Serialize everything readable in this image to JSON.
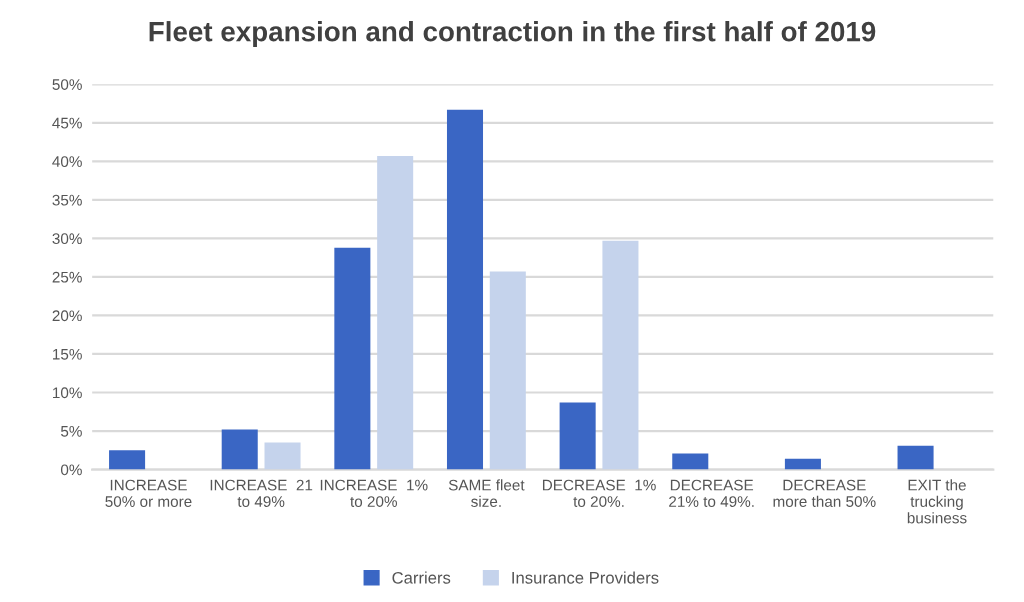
{
  "chart_data": {
    "type": "bar",
    "title": "Fleet expansion and contraction in the first half of 2019",
    "categories": [
      "INCREASE\n50% or more",
      "INCREASE  21\nto 49%",
      "INCREASE  1%\nto 20%",
      "SAME fleet\nsize.",
      "DECREASE  1%\nto 20%.",
      "DECREASE\n21% to 49%.",
      "DECREASE\nmore than 50%",
      "EXIT the\ntrucking\nbusiness"
    ],
    "series": [
      {
        "name": "Carriers",
        "color": "#3a66c4",
        "values": [
          2.5,
          5.2,
          28.8,
          46.7,
          8.7,
          2.1,
          1.4,
          3.1
        ]
      },
      {
        "name": "Insurance Providers",
        "color": "#c5d3ec",
        "values": [
          0,
          3.5,
          40.7,
          25.7,
          29.7,
          0,
          0,
          0
        ]
      }
    ],
    "ylim": [
      0,
      50
    ],
    "yticks": [
      {
        "value": 0,
        "label": "0%"
      },
      {
        "value": 5,
        "label": "5%"
      },
      {
        "value": 10,
        "label": "10%"
      },
      {
        "value": 15,
        "label": "15%"
      },
      {
        "value": 20,
        "label": "20%"
      },
      {
        "value": 25,
        "label": "25%"
      },
      {
        "value": 30,
        "label": "30%"
      },
      {
        "value": 35,
        "label": "35%"
      },
      {
        "value": 40,
        "label": "40%"
      },
      {
        "value": 45,
        "label": "45%"
      },
      {
        "value": 50,
        "label": "50%"
      }
    ],
    "grid": "y",
    "legend": "bottom"
  }
}
